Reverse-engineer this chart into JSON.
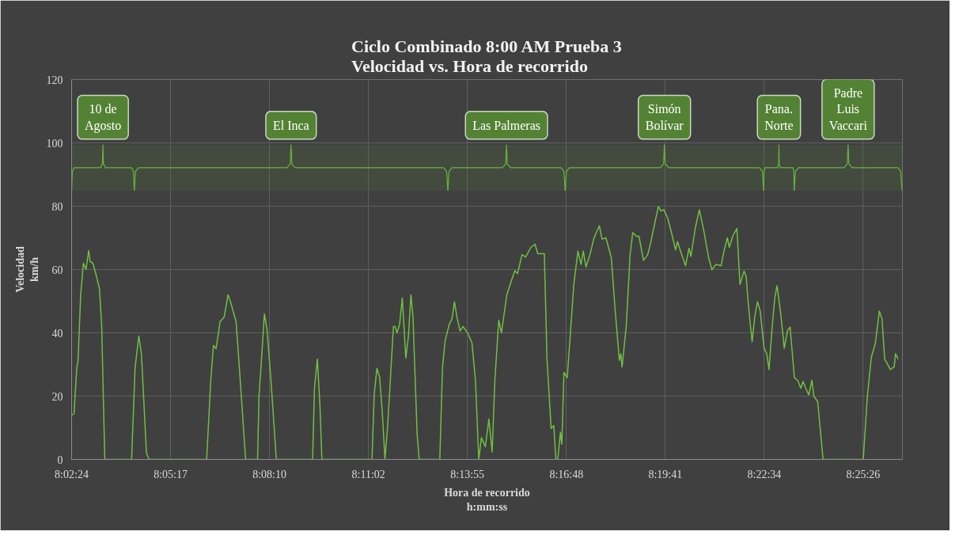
{
  "chart_data": {
    "type": "line",
    "title": "Ciclo Combinado 8:00 AM Prueba 3\nVelocidad vs. Hora de recorrido",
    "xlabel": "Hora de recorrido\nh:mm:ss",
    "ylabel": "Velocidad\nkm/h",
    "x": [
      8.0401,
      8.0412,
      8.0425,
      8.0431,
      8.0444,
      8.0457,
      8.047,
      8.0483,
      8.049,
      8.0503,
      8.0516,
      8.0535,
      8.0546,
      8.0555,
      8.0561,
      8.0691,
      8.0708,
      8.0726,
      8.0739,
      8.0763,
      8.0776,
      8.1055,
      8.1075,
      8.1088,
      8.1101,
      8.112,
      8.114,
      8.1159,
      8.1172,
      8.1198,
      8.1218,
      8.1244,
      8.1302,
      8.1309,
      8.1322,
      8.1335,
      8.1348,
      8.1367,
      8.1393,
      8.1569,
      8.1578,
      8.1592,
      8.1605,
      8.1614,
      8.1857,
      8.1868,
      8.1881,
      8.1894,
      8.1907,
      8.192,
      8.1933,
      8.1946,
      8.1961,
      8.1969,
      8.1978,
      8.1991,
      8.2004,
      8.2021,
      8.2034,
      8.2046,
      8.2056,
      8.2076,
      8.2086,
      8.2186,
      8.2199,
      8.2212,
      8.2232,
      8.2245,
      8.2257,
      8.2271,
      8.2284,
      8.2299,
      8.2323,
      8.2342,
      8.2359,
      8.2375,
      8.2388,
      8.2407,
      8.2424,
      8.244,
      8.2453,
      8.2472,
      8.2485,
      8.2511,
      8.2531,
      8.255,
      8.2563,
      8.2585,
      8.2602,
      8.2628,
      8.2648,
      8.2661,
      8.2693,
      8.2706,
      8.2726,
      8.2739,
      8.2749,
      8.2758,
      8.2771,
      8.2778,
      8.2788,
      8.2804,
      8.2817,
      8.2836,
      8.2856,
      8.2871,
      8.2882,
      8.2895,
      8.2914,
      8.2934,
      8.296,
      8.2973,
      8.2992,
      8.3018,
      8.3038,
      8.3057,
      8.3064,
      8.307,
      8.309,
      8.3109,
      8.3122,
      8.3139,
      8.3152,
      8.3174,
      8.3194,
      8.3207,
      8.3226,
      8.3246,
      8.3259,
      8.3272,
      8.3291,
      8.3311,
      8.333,
      8.3339,
      8.3356,
      8.3378,
      8.3395,
      8.3404,
      8.3425,
      8.3445,
      8.3467,
      8.349,
      8.3506,
      8.3525,
      8.3551,
      8.3564,
      8.3581,
      8.359,
      8.3607,
      8.3627,
      8.3642,
      8.3662,
      8.3672,
      8.3681,
      8.3692,
      8.3701,
      8.3714,
      8.3727,
      8.374,
      8.3759,
      8.3772,
      8.3783,
      8.3798,
      8.3811,
      8.3822,
      8.3841,
      8.3857,
      8.3872,
      8.3885,
      8.3906,
      8.3922,
      8.3937,
      8.3948,
      8.3961,
      8.3976,
      8.3991,
      8.4,
      8.4019,
      8.4045,
      8.424,
      8.426,
      8.4279,
      8.4299,
      8.4318,
      8.4331,
      8.4344,
      8.4365,
      8.4371,
      8.439,
      8.4396,
      8.4409
    ],
    "series": [
      {
        "color": "#70c040",
        "values": [
          14,
          14.5,
          29,
          31,
          52,
          62,
          60,
          66,
          62.5,
          62,
          59,
          54,
          42,
          16.5,
          0,
          0,
          29,
          39,
          33,
          2,
          0,
          0,
          25,
          36,
          35,
          43.5,
          45,
          52,
          49.5,
          43.5,
          25,
          0,
          0,
          20,
          32.5,
          46,
          41,
          25,
          0,
          0,
          22.5,
          31.7,
          16.5,
          0,
          0,
          20.8,
          28.8,
          26,
          15,
          0,
          10.7,
          25,
          42,
          42,
          40,
          42.7,
          51,
          32,
          39,
          52,
          45,
          8,
          0,
          0,
          29,
          37.6,
          42.7,
          44.4,
          49.8,
          44.4,
          40.6,
          42,
          39.7,
          36.8,
          25,
          0,
          6.9,
          4,
          12.8,
          2.3,
          25,
          44,
          40,
          52,
          56,
          59.6,
          58.7,
          64.7,
          63.9,
          67,
          68,
          65,
          65,
          31.7,
          9.8,
          10.7,
          0,
          0,
          8.6,
          4.8,
          27.5,
          25.8,
          37.6,
          55.3,
          65.8,
          61.6,
          65.8,
          60.8,
          64.6,
          70,
          73.8,
          69.6,
          70,
          63.7,
          46,
          31.3,
          33.4,
          29.2,
          41.8,
          64.6,
          71.7,
          70.5,
          70.5,
          62.9,
          64.6,
          67.9,
          73.8,
          79.9,
          78.5,
          78.9,
          76.3,
          71.3,
          66.2,
          68.8,
          65.4,
          61.2,
          66.7,
          64.1,
          73,
          78.9,
          72.1,
          63.7,
          59.9,
          61.6,
          61.2,
          65.8,
          70,
          67,
          70.5,
          73,
          55.3,
          59.5,
          57.8,
          50.3,
          42.7,
          37.2,
          45.2,
          49.8,
          46.9,
          35.1,
          33.4,
          28.4,
          41.8,
          51.1,
          54.9,
          45.2,
          35.1,
          40.6,
          41.8,
          25.8,
          25,
          22.5,
          24.6,
          22.5,
          20.4,
          25,
          20,
          18.3,
          0,
          0,
          20,
          32.2,
          36.8,
          46.9,
          44.4,
          31.7,
          29.2,
          28.4,
          29.2,
          33.4,
          31.7
        ]
      }
    ],
    "xlim": [
      8.04,
      8.443
    ],
    "ylim": [
      0,
      120
    ],
    "xticks": [
      {
        "value": 8.04,
        "label": "8:02:24"
      },
      {
        "value": 8.088,
        "label": "8:05:17"
      },
      {
        "value": 8.136,
        "label": "8:08:10"
      },
      {
        "value": 8.184,
        "label": "8:11:02"
      },
      {
        "value": 8.232,
        "label": "8:13:55"
      },
      {
        "value": 8.28,
        "label": "8:16:48"
      },
      {
        "value": 8.328,
        "label": "8:19:41"
      },
      {
        "value": 8.376,
        "label": "8:22:34"
      },
      {
        "value": 8.424,
        "label": "8:25:26"
      }
    ],
    "yticks": [
      0,
      20,
      40,
      60,
      80,
      100,
      120
    ],
    "bands": [
      {
        "axis": "x",
        "from": 8.04,
        "to": 8.0704,
        "label": "10 de\nAgosto",
        "color": "#548235"
      },
      {
        "axis": "x",
        "from": 8.0704,
        "to": 8.2225,
        "label": "El Inca",
        "color": "#548235"
      },
      {
        "axis": "x",
        "from": 8.2225,
        "to": 8.2794,
        "label": "Las Palmeras",
        "color": "#548235"
      },
      {
        "axis": "x",
        "from": 8.2794,
        "to": 8.3757,
        "label": "Simón\nBolívar",
        "color": "#548235"
      },
      {
        "axis": "x",
        "from": 8.3757,
        "to": 8.3905,
        "label": "Pana.\nNorte",
        "color": "#548235"
      },
      {
        "axis": "x",
        "from": 8.3905,
        "to": 8.4428,
        "label": "Padre\nLuis\nVaccari",
        "color": "#548235"
      }
    ],
    "grid": true,
    "marker": "none",
    "line_style": "solid"
  }
}
